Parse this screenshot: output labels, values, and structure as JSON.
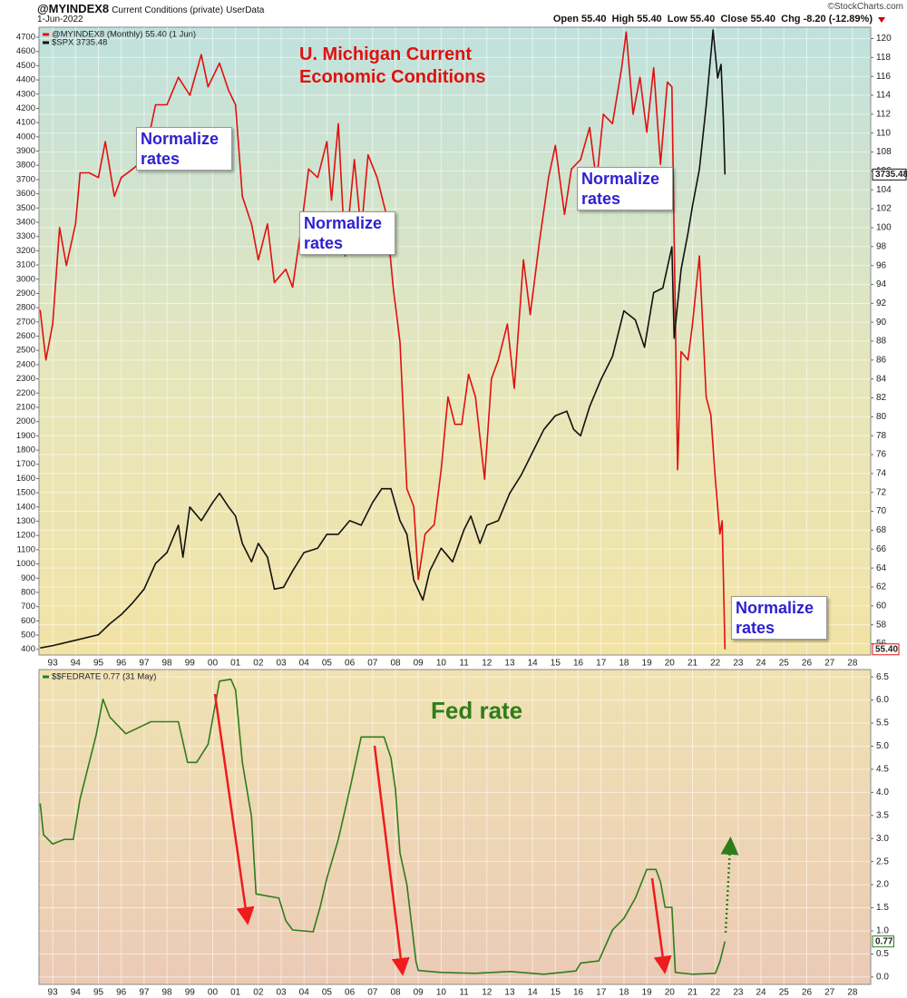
{
  "chart_data": [
    {
      "type": "line",
      "header": {
        "symbol": "@MYINDEX8",
        "description": "Current Conditions (private)",
        "source": "UserData",
        "date": "1-Jun-2022",
        "quote": "Open 55.40  High 55.40  Low 55.40  Close 55.40  Chg -8.20 (-12.89%)",
        "copyright": "©StockCharts.com"
      },
      "title": "U. Michigan Current Economic Conditions",
      "annotations": [
        "Normalize rates",
        "Normalize rates",
        "Normalize rates",
        "Normalize rates"
      ],
      "xlim": [
        1992.4,
        2028.8
      ],
      "xticks": [
        {
          "value": 1993,
          "label": "93"
        },
        {
          "value": 1994,
          "label": "94"
        },
        {
          "value": 1995,
          "label": "95"
        },
        {
          "value": 1996,
          "label": "96"
        },
        {
          "value": 1997,
          "label": "97"
        },
        {
          "value": 1998,
          "label": "98"
        },
        {
          "value": 1999,
          "label": "99"
        },
        {
          "value": 2000,
          "label": "00"
        },
        {
          "value": 2001,
          "label": "01"
        },
        {
          "value": 2002,
          "label": "02"
        },
        {
          "value": 2003,
          "label": "03"
        },
        {
          "value": 2004,
          "label": "04"
        },
        {
          "value": 2005,
          "label": "05"
        },
        {
          "value": 2006,
          "label": "06"
        },
        {
          "value": 2007,
          "label": "07"
        },
        {
          "value": 2008,
          "label": "08"
        },
        {
          "value": 2009,
          "label": "09"
        },
        {
          "value": 2010,
          "label": "10"
        },
        {
          "value": 2011,
          "label": "11"
        },
        {
          "value": 2012,
          "label": "12"
        },
        {
          "value": 2013,
          "label": "13"
        },
        {
          "value": 2014,
          "label": "14"
        },
        {
          "value": 2015,
          "label": "15"
        },
        {
          "value": 2016,
          "label": "16"
        },
        {
          "value": 2017,
          "label": "17"
        },
        {
          "value": 2018,
          "label": "18"
        },
        {
          "value": 2019,
          "label": "19"
        },
        {
          "value": 2020,
          "label": "20"
        },
        {
          "value": 2021,
          "label": "21"
        },
        {
          "value": 2022,
          "label": "22"
        },
        {
          "value": 2023,
          "label": "23"
        },
        {
          "value": 2024,
          "label": "24"
        },
        {
          "value": 2025,
          "label": "25"
        },
        {
          "value": 2026,
          "label": "26"
        },
        {
          "value": 2027,
          "label": "27"
        },
        {
          "value": 2028,
          "label": "28"
        }
      ],
      "ylim": [
        360,
        4770
      ],
      "yticks": [
        400,
        500,
        600,
        700,
        800,
        900,
        1000,
        1100,
        1200,
        1300,
        1400,
        1500,
        1600,
        1700,
        1800,
        1900,
        2000,
        2100,
        2200,
        2300,
        2400,
        2500,
        2600,
        2700,
        2800,
        2900,
        3000,
        3100,
        3200,
        3300,
        3400,
        3500,
        3600,
        3700,
        3800,
        3900,
        4000,
        4100,
        4200,
        4300,
        4400,
        4500,
        4600,
        4700
      ],
      "y2lim": [
        54.8,
        121.2
      ],
      "y2ticks": [
        56,
        58,
        60,
        62,
        64,
        66,
        68,
        70,
        72,
        74,
        76,
        78,
        80,
        82,
        84,
        86,
        88,
        90,
        92,
        94,
        96,
        98,
        100,
        102,
        104,
        106,
        108,
        110,
        112,
        114,
        116,
        118,
        120
      ],
      "grid": true,
      "series": [
        {
          "name": "@MYINDEX8 (Monthly) 55.40 (1 Jun)",
          "color": "#e01010",
          "axis": "y2",
          "last_value_label": "55.40",
          "x": [
            1992.45,
            1992.7,
            1993,
            1993.3,
            1993.6,
            1994,
            1994.2,
            1994.6,
            1995,
            1995.3,
            1995.7,
            1996,
            1996.5,
            1997,
            1997.5,
            1998,
            1998.5,
            1999,
            1999.5,
            1999.8,
            2000.3,
            2000.7,
            2001,
            2001.3,
            2001.7,
            2002,
            2002.4,
            2002.7,
            2003.2,
            2003.5,
            2003.9,
            2004.2,
            2004.6,
            2005,
            2005.2,
            2005.5,
            2005.8,
            2006.2,
            2006.5,
            2006.8,
            2007.2,
            2007.6,
            2007.9,
            2008.2,
            2008.5,
            2008.8,
            2009,
            2009.3,
            2009.7,
            2010,
            2010.3,
            2010.6,
            2010.9,
            2011.2,
            2011.5,
            2011.9,
            2012.2,
            2012.5,
            2012.9,
            2013.2,
            2013.6,
            2013.9,
            2014.3,
            2014.7,
            2015,
            2015.4,
            2015.7,
            2016.1,
            2016.5,
            2016.8,
            2017.1,
            2017.5,
            2017.9,
            2018.1,
            2018.4,
            2018.7,
            2019,
            2019.3,
            2019.6,
            2019.9,
            2020.1,
            2020.35,
            2020.5,
            2020.8,
            2021,
            2021.3,
            2021.6,
            2021.8,
            2022,
            2022.2,
            2022.3,
            2022.42
          ],
          "values": [
            91.3,
            86,
            89.8,
            100,
            96,
            100.4,
            105.8,
            105.8,
            105.3,
            109.1,
            103.3,
            105.3,
            106.2,
            107.2,
            113,
            113,
            115.9,
            114,
            118.3,
            114.9,
            117.4,
            114.5,
            113,
            103.3,
            100.4,
            96.6,
            100.4,
            94.2,
            95.6,
            93.7,
            100.4,
            106.2,
            105.3,
            109.1,
            102.9,
            111,
            97,
            107.2,
            99.5,
            107.7,
            105.3,
            101.4,
            93.7,
            87.9,
            72.4,
            70.5,
            62.8,
            67.6,
            68.6,
            74.4,
            82.1,
            79.2,
            79.2,
            84.5,
            82.1,
            73.4,
            84,
            86,
            89.8,
            83,
            96.6,
            90.8,
            98.5,
            105.3,
            108.7,
            101.4,
            106.2,
            107.2,
            110.6,
            104.8,
            112,
            111,
            116.9,
            120.7,
            112,
            115.9,
            110.1,
            116.9,
            106.7,
            115.4,
            114.9,
            74.4,
            86.9,
            86,
            89.8,
            97,
            82.1,
            80.2,
            73.4,
            67.6,
            69,
            55.4
          ]
        },
        {
          "name": "$SPX 3735.48",
          "color": "#111111",
          "axis": "y",
          "last_value_label": "3735.48",
          "x": [
            1992.45,
            1993,
            1994,
            1995,
            1995.5,
            1996,
            1996.5,
            1997,
            1997.5,
            1998,
            1998.5,
            1998.7,
            1999,
            1999.5,
            2000,
            2000.3,
            2000.7,
            2001,
            2001.3,
            2001.7,
            2002,
            2002.4,
            2002.7,
            2003.1,
            2003.5,
            2004,
            2004.6,
            2005,
            2005.5,
            2006,
            2006.5,
            2007,
            2007.4,
            2007.8,
            2008.2,
            2008.5,
            2008.8,
            2009.2,
            2009.5,
            2010,
            2010.5,
            2011,
            2011.3,
            2011.7,
            2012,
            2012.5,
            2013,
            2013.5,
            2014,
            2014.5,
            2015,
            2015.5,
            2015.8,
            2016.1,
            2016.5,
            2017,
            2017.5,
            2018,
            2018.5,
            2018.9,
            2019.3,
            2019.7,
            2020.1,
            2020.2,
            2020.5,
            2020.8,
            2021,
            2021.3,
            2021.6,
            2021.9,
            2022.1,
            2022.25,
            2022.35,
            2022.42
          ],
          "values": [
            410,
            426,
            464,
            503,
            580,
            644,
            727,
            823,
            1003,
            1080,
            1272,
            1047,
            1400,
            1304,
            1432,
            1496,
            1400,
            1336,
            1144,
            1015,
            1144,
            1047,
            823,
            836,
            951,
            1080,
            1111,
            1208,
            1208,
            1304,
            1272,
            1432,
            1528,
            1528,
            1304,
            1208,
            887,
            746,
            951,
            1111,
            1015,
            1240,
            1336,
            1144,
            1272,
            1304,
            1496,
            1624,
            1785,
            1945,
            2041,
            2073,
            1945,
            1900,
            2105,
            2297,
            2458,
            2778,
            2714,
            2522,
            2906,
            2938,
            3227,
            2586,
            3067,
            3323,
            3515,
            3772,
            4220,
            4750,
            4413,
            4509,
            4124,
            3735.48
          ]
        }
      ]
    },
    {
      "type": "line",
      "title": "Fed rate",
      "xlim": [
        1992.4,
        2028.8
      ],
      "xticks": [
        {
          "value": 1993,
          "label": "93"
        },
        {
          "value": 1994,
          "label": "94"
        },
        {
          "value": 1995,
          "label": "95"
        },
        {
          "value": 1996,
          "label": "96"
        },
        {
          "value": 1997,
          "label": "97"
        },
        {
          "value": 1998,
          "label": "98"
        },
        {
          "value": 1999,
          "label": "99"
        },
        {
          "value": 2000,
          "label": "00"
        },
        {
          "value": 2001,
          "label": "01"
        },
        {
          "value": 2002,
          "label": "02"
        },
        {
          "value": 2003,
          "label": "03"
        },
        {
          "value": 2004,
          "label": "04"
        },
        {
          "value": 2005,
          "label": "05"
        },
        {
          "value": 2006,
          "label": "06"
        },
        {
          "value": 2007,
          "label": "07"
        },
        {
          "value": 2008,
          "label": "08"
        },
        {
          "value": 2009,
          "label": "09"
        },
        {
          "value": 2010,
          "label": "10"
        },
        {
          "value": 2011,
          "label": "11"
        },
        {
          "value": 2012,
          "label": "12"
        },
        {
          "value": 2013,
          "label": "13"
        },
        {
          "value": 2014,
          "label": "14"
        },
        {
          "value": 2015,
          "label": "15"
        },
        {
          "value": 2016,
          "label": "16"
        },
        {
          "value": 2017,
          "label": "17"
        },
        {
          "value": 2018,
          "label": "18"
        },
        {
          "value": 2019,
          "label": "19"
        },
        {
          "value": 2020,
          "label": "20"
        },
        {
          "value": 2021,
          "label": "21"
        },
        {
          "value": 2022,
          "label": "22"
        },
        {
          "value": 2023,
          "label": "23"
        },
        {
          "value": 2024,
          "label": "24"
        },
        {
          "value": 2025,
          "label": "25"
        },
        {
          "value": 2026,
          "label": "26"
        },
        {
          "value": 2027,
          "label": "27"
        },
        {
          "value": 2028,
          "label": "28"
        }
      ],
      "y2lim": [
        -0.16,
        6.66
      ],
      "y2ticks": [
        {
          "value": 0,
          "label": "0.0"
        },
        0.5,
        {
          "value": 1,
          "label": "1.0"
        },
        1.5,
        {
          "value": 2,
          "label": "2.0"
        },
        2.5,
        {
          "value": 3,
          "label": "3.0"
        },
        3.5,
        {
          "value": 4,
          "label": "4.0"
        },
        4.5,
        {
          "value": 5,
          "label": "5.0"
        },
        5.5,
        {
          "value": 6,
          "label": "6.0"
        },
        6.5
      ],
      "grid": true,
      "series": [
        {
          "name": "$$FEDRATE 0.77 (31 May)",
          "color": "#2e7d1a",
          "axis": "y2",
          "last_value_label": "0.77",
          "x": [
            1992.45,
            1992.6,
            1993,
            1993.5,
            1993.9,
            1994.2,
            1994.5,
            1994.9,
            1995.2,
            1995.5,
            1996.2,
            1997.3,
            1998.5,
            1998.9,
            1999.3,
            1999.8,
            2000.3,
            2000.8,
            2001,
            2001.3,
            2001.7,
            2001.9,
            2002.9,
            2003.2,
            2003.5,
            2004.4,
            2004.7,
            2005,
            2005.5,
            2006,
            2006.5,
            2007.5,
            2007.8,
            2008,
            2008.2,
            2008.5,
            2008.9,
            2009,
            2010,
            2011.5,
            2013,
            2014.5,
            2015.9,
            2016.1,
            2016.9,
            2017.2,
            2017.5,
            2018,
            2018.5,
            2019,
            2019.4,
            2019.6,
            2019.8,
            2020.1,
            2020.25,
            2021,
            2022,
            2022.2,
            2022.42
          ],
          "values": [
            3.76,
            3.08,
            2.88,
            2.98,
            2.98,
            3.86,
            4.45,
            5.24,
            6.02,
            5.63,
            5.27,
            5.53,
            5.53,
            4.65,
            4.65,
            5.04,
            6.41,
            6.45,
            6.22,
            4.65,
            3.47,
            1.8,
            1.71,
            1.22,
            1.02,
            0.98,
            1.51,
            2.14,
            2.98,
            4.06,
            5.2,
            5.2,
            4.75,
            4.06,
            2.69,
            2,
            0.33,
            0.14,
            0.1,
            0.08,
            0.12,
            0.06,
            0.13,
            0.3,
            0.35,
            0.69,
            1.02,
            1.27,
            1.71,
            2.33,
            2.33,
            2.06,
            1.51,
            1.51,
            0.1,
            0.06,
            0.08,
            0.33,
            0.77
          ]
        }
      ]
    }
  ]
}
